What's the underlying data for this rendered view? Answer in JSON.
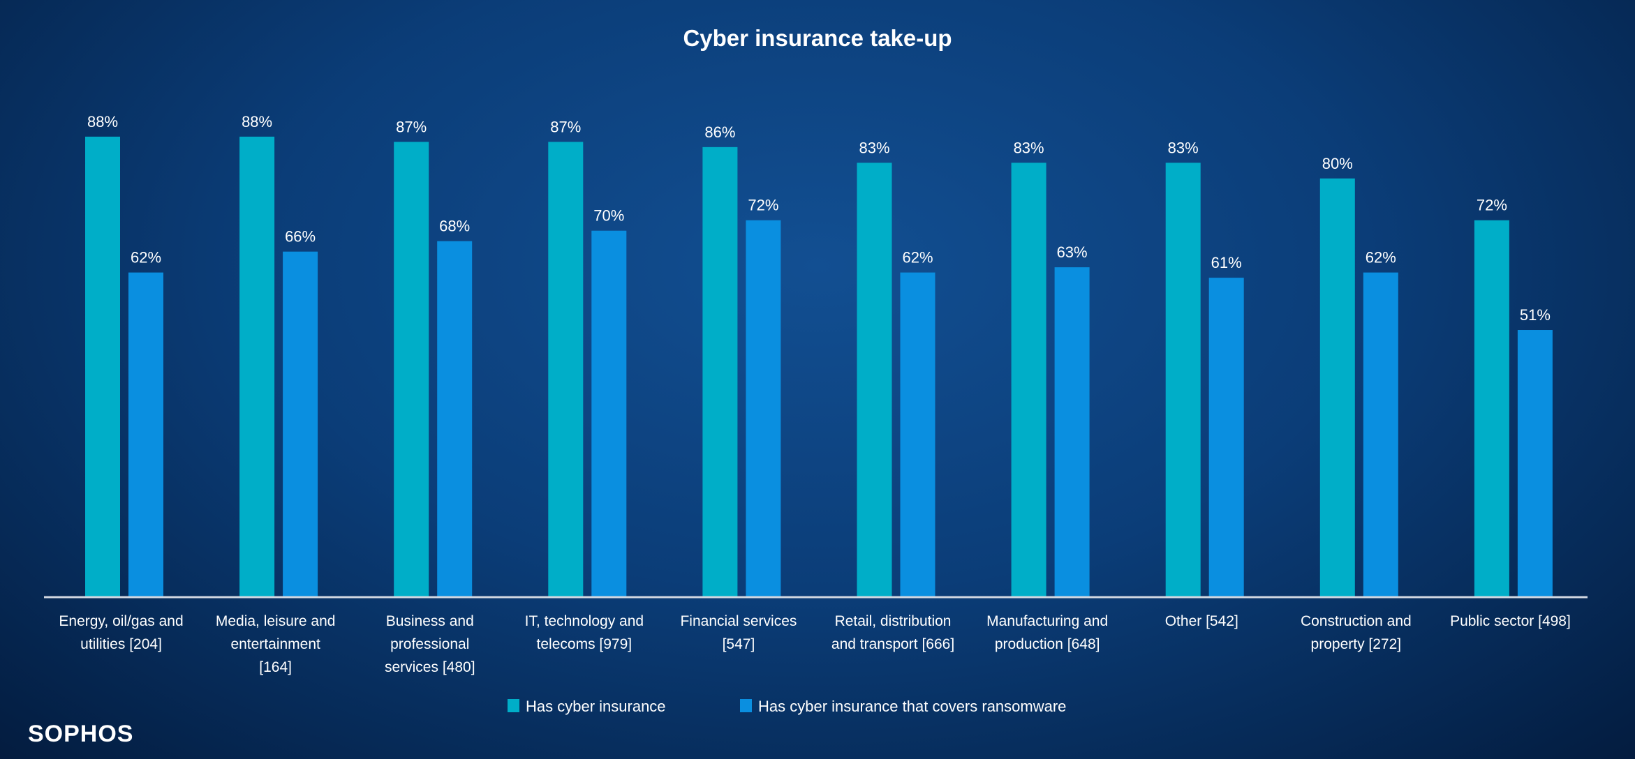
{
  "chart_data": {
    "type": "bar",
    "title": "Cyber insurance take-up",
    "categories": [
      [
        "Energy, oil/gas and",
        "utilities [204]"
      ],
      [
        "Media, leisure and",
        "entertainment",
        "[164]"
      ],
      [
        "Business and",
        "professional",
        "services [480]"
      ],
      [
        "IT, technology and",
        "telecoms [979]"
      ],
      [
        "Financial services",
        "[547]"
      ],
      [
        "Retail, distribution",
        "and transport [666]"
      ],
      [
        "Manufacturing and",
        "production [648]"
      ],
      [
        "Other [542]"
      ],
      [
        "Construction and",
        "property [272]"
      ],
      [
        "Public sector [498]"
      ]
    ],
    "series": [
      {
        "name": "Has cyber insurance",
        "color": "#00aec8",
        "values": [
          88,
          88,
          87,
          87,
          86,
          83,
          83,
          83,
          80,
          72
        ]
      },
      {
        "name": "Has cyber insurance that covers ransomware",
        "color": "#0a8fe0",
        "values": [
          62,
          66,
          68,
          70,
          72,
          62,
          63,
          61,
          62,
          51
        ]
      }
    ],
    "value_suffix": "%",
    "ylim": [
      0,
      100
    ],
    "grid": false,
    "legend": "bottom",
    "background": "#0b3d78"
  },
  "branding": {
    "logo": "SOPHOS"
  }
}
